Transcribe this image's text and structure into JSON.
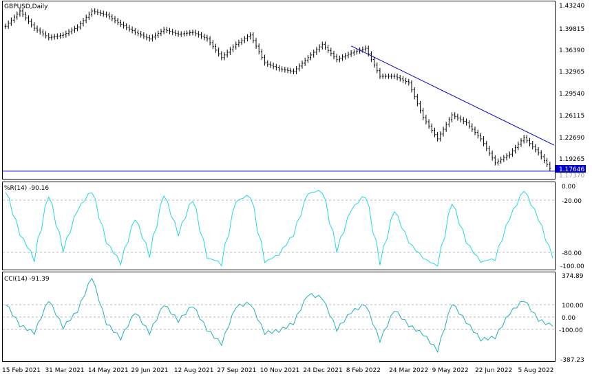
{
  "chart_data": [
    {
      "type": "line",
      "title": "GBPUSD,Daily",
      "price_axis_ticks": [
        "1.43240",
        "1.39815",
        "1.36390",
        "1.32965",
        "1.29540",
        "1.26115",
        "1.22690",
        "1.19265"
      ],
      "ylim": [
        1.166,
        1.4324
      ],
      "current_price": "1.17646",
      "bid_price": "1.17370",
      "horizontal_line": 1.1775,
      "trendline": {
        "from": [
          "8 Feb 2022",
          1.3655
        ],
        "to": [
          "mid Aug 2022",
          1.2165
        ]
      },
      "x_tick_labels": [
        "15 Feb 2021",
        "31 Mar 2021",
        "14 May 2021",
        "29 Jun 2021",
        "12 Aug 2021",
        "27 Sep 2021",
        "10 Nov 2021",
        "24 Dec 2021",
        "8 Feb 2022",
        "24 Mar 2022",
        "9 May 2022",
        "22 Jun 2022",
        "5 Aug 2022"
      ],
      "series": [
        {
          "name": "GBPUSD",
          "x": [
            "15 Feb 2021",
            "1 Mar 2021",
            "15 Mar 2021",
            "31 Mar 2021",
            "15 Apr 2021",
            "1 May 2021",
            "14 May 2021",
            "1 Jun 2021",
            "15 Jun 2021",
            "29 Jun 2021",
            "15 Jul 2021",
            "1 Aug 2021",
            "12 Aug 2021",
            "1 Sep 2021",
            "15 Sep 2021",
            "27 Sep 2021",
            "10 Oct 2021",
            "25 Oct 2021",
            "10 Nov 2021",
            "25 Nov 2021",
            "10 Dec 2021",
            "24 Dec 2021",
            "10 Jan 2022",
            "25 Jan 2022",
            "8 Feb 2022",
            "24 Feb 2022",
            "10 Mar 2022",
            "24 Mar 2022",
            "10 Apr 2022",
            "25 Apr 2022",
            "9 May 2022",
            "25 May 2022",
            "10 Jun 2022",
            "22 Jun 2022",
            "10 Jul 2022",
            "25 Jul 2022",
            "5 Aug 2022",
            "15 Aug 2022",
            "24 Aug 2022"
          ],
          "values": [
            1.395,
            1.418,
            1.392,
            1.378,
            1.382,
            1.394,
            1.418,
            1.412,
            1.398,
            1.386,
            1.376,
            1.39,
            1.383,
            1.386,
            1.376,
            1.348,
            1.368,
            1.382,
            1.34,
            1.331,
            1.327,
            1.348,
            1.368,
            1.345,
            1.355,
            1.362,
            1.32,
            1.32,
            1.31,
            1.258,
            1.226,
            1.262,
            1.25,
            1.226,
            1.19,
            1.203,
            1.228,
            1.205,
            1.176
          ]
        }
      ]
    },
    {
      "type": "line",
      "title": "%R(14) -90.16",
      "levels": [
        "0.00",
        "-20.00",
        "-80.00",
        "-100.00"
      ],
      "ylim": [
        -100,
        0
      ],
      "series": [
        {
          "name": "%R(14)",
          "x": [
            "15 Feb 2021",
            "1 Mar 2021",
            "15 Mar 2021",
            "31 Mar 2021",
            "15 Apr 2021",
            "1 May 2021",
            "14 May 2021",
            "1 Jun 2021",
            "15 Jun 2021",
            "29 Jun 2021",
            "15 Jul 2021",
            "1 Aug 2021",
            "12 Aug 2021",
            "1 Sep 2021",
            "15 Sep 2021",
            "27 Sep 2021",
            "10 Oct 2021",
            "25 Oct 2021",
            "10 Nov 2021",
            "25 Nov 2021",
            "10 Dec 2021",
            "24 Dec 2021",
            "10 Jan 2022",
            "25 Jan 2022",
            "8 Feb 2022",
            "24 Feb 2022",
            "10 Mar 2022",
            "24 Mar 2022",
            "10 Apr 2022",
            "25 Apr 2022",
            "9 May 2022",
            "25 May 2022",
            "10 Jun 2022",
            "22 Jun 2022",
            "10 Jul 2022",
            "25 Jul 2022",
            "5 Aug 2022",
            "15 Aug 2022",
            "24 Aug 2022"
          ],
          "values": [
            -5,
            -60,
            -90,
            -10,
            -80,
            -30,
            -5,
            -70,
            -95,
            -40,
            -85,
            -10,
            -60,
            -15,
            -90,
            -95,
            -20,
            -10,
            -95,
            -85,
            -60,
            -10,
            -5,
            -80,
            -30,
            -10,
            -95,
            -30,
            -70,
            -90,
            -100,
            -20,
            -70,
            -95,
            -90,
            -40,
            -5,
            -40,
            -90
          ]
        }
      ]
    },
    {
      "type": "line",
      "title": "CCI(14) -91.39",
      "levels": [
        "374.89",
        "100.00",
        "0.00",
        "-100.00",
        "-387.23"
      ],
      "ylim": [
        -387.23,
        374.89
      ],
      "series": [
        {
          "name": "CCI(14)",
          "x": [
            "15 Feb 2021",
            "1 Mar 2021",
            "15 Mar 2021",
            "31 Mar 2021",
            "15 Apr 2021",
            "1 May 2021",
            "14 May 2021",
            "1 Jun 2021",
            "15 Jun 2021",
            "29 Jun 2021",
            "15 Jul 2021",
            "1 Aug 2021",
            "12 Aug 2021",
            "1 Sep 2021",
            "15 Sep 2021",
            "27 Sep 2021",
            "10 Oct 2021",
            "25 Oct 2021",
            "10 Nov 2021",
            "25 Nov 2021",
            "10 Dec 2021",
            "24 Dec 2021",
            "10 Jan 2022",
            "25 Jan 2022",
            "8 Feb 2022",
            "24 Feb 2022",
            "10 Mar 2022",
            "24 Mar 2022",
            "10 Apr 2022",
            "25 Apr 2022",
            "9 May 2022",
            "25 May 2022",
            "10 Jun 2022",
            "22 Jun 2022",
            "10 Jul 2022",
            "25 Jul 2022",
            "5 Aug 2022",
            "15 Aug 2022",
            "24 Aug 2022"
          ],
          "values": [
            120,
            -80,
            -150,
            150,
            -100,
            50,
            360,
            -60,
            -200,
            40,
            -150,
            110,
            -40,
            100,
            -120,
            -250,
            90,
            120,
            -150,
            -130,
            -60,
            200,
            170,
            -120,
            40,
            110,
            -220,
            60,
            -80,
            -160,
            -310,
            120,
            -50,
            -210,
            -190,
            30,
            150,
            -30,
            -90
          ]
        }
      ]
    }
  ],
  "colors": {
    "candles": "#000000",
    "trendline": "#0000cc",
    "hline": "#0000cc",
    "wpr": "#20d8e0",
    "cci": "#20b0b8",
    "price_label_bg": "#0000cc"
  }
}
